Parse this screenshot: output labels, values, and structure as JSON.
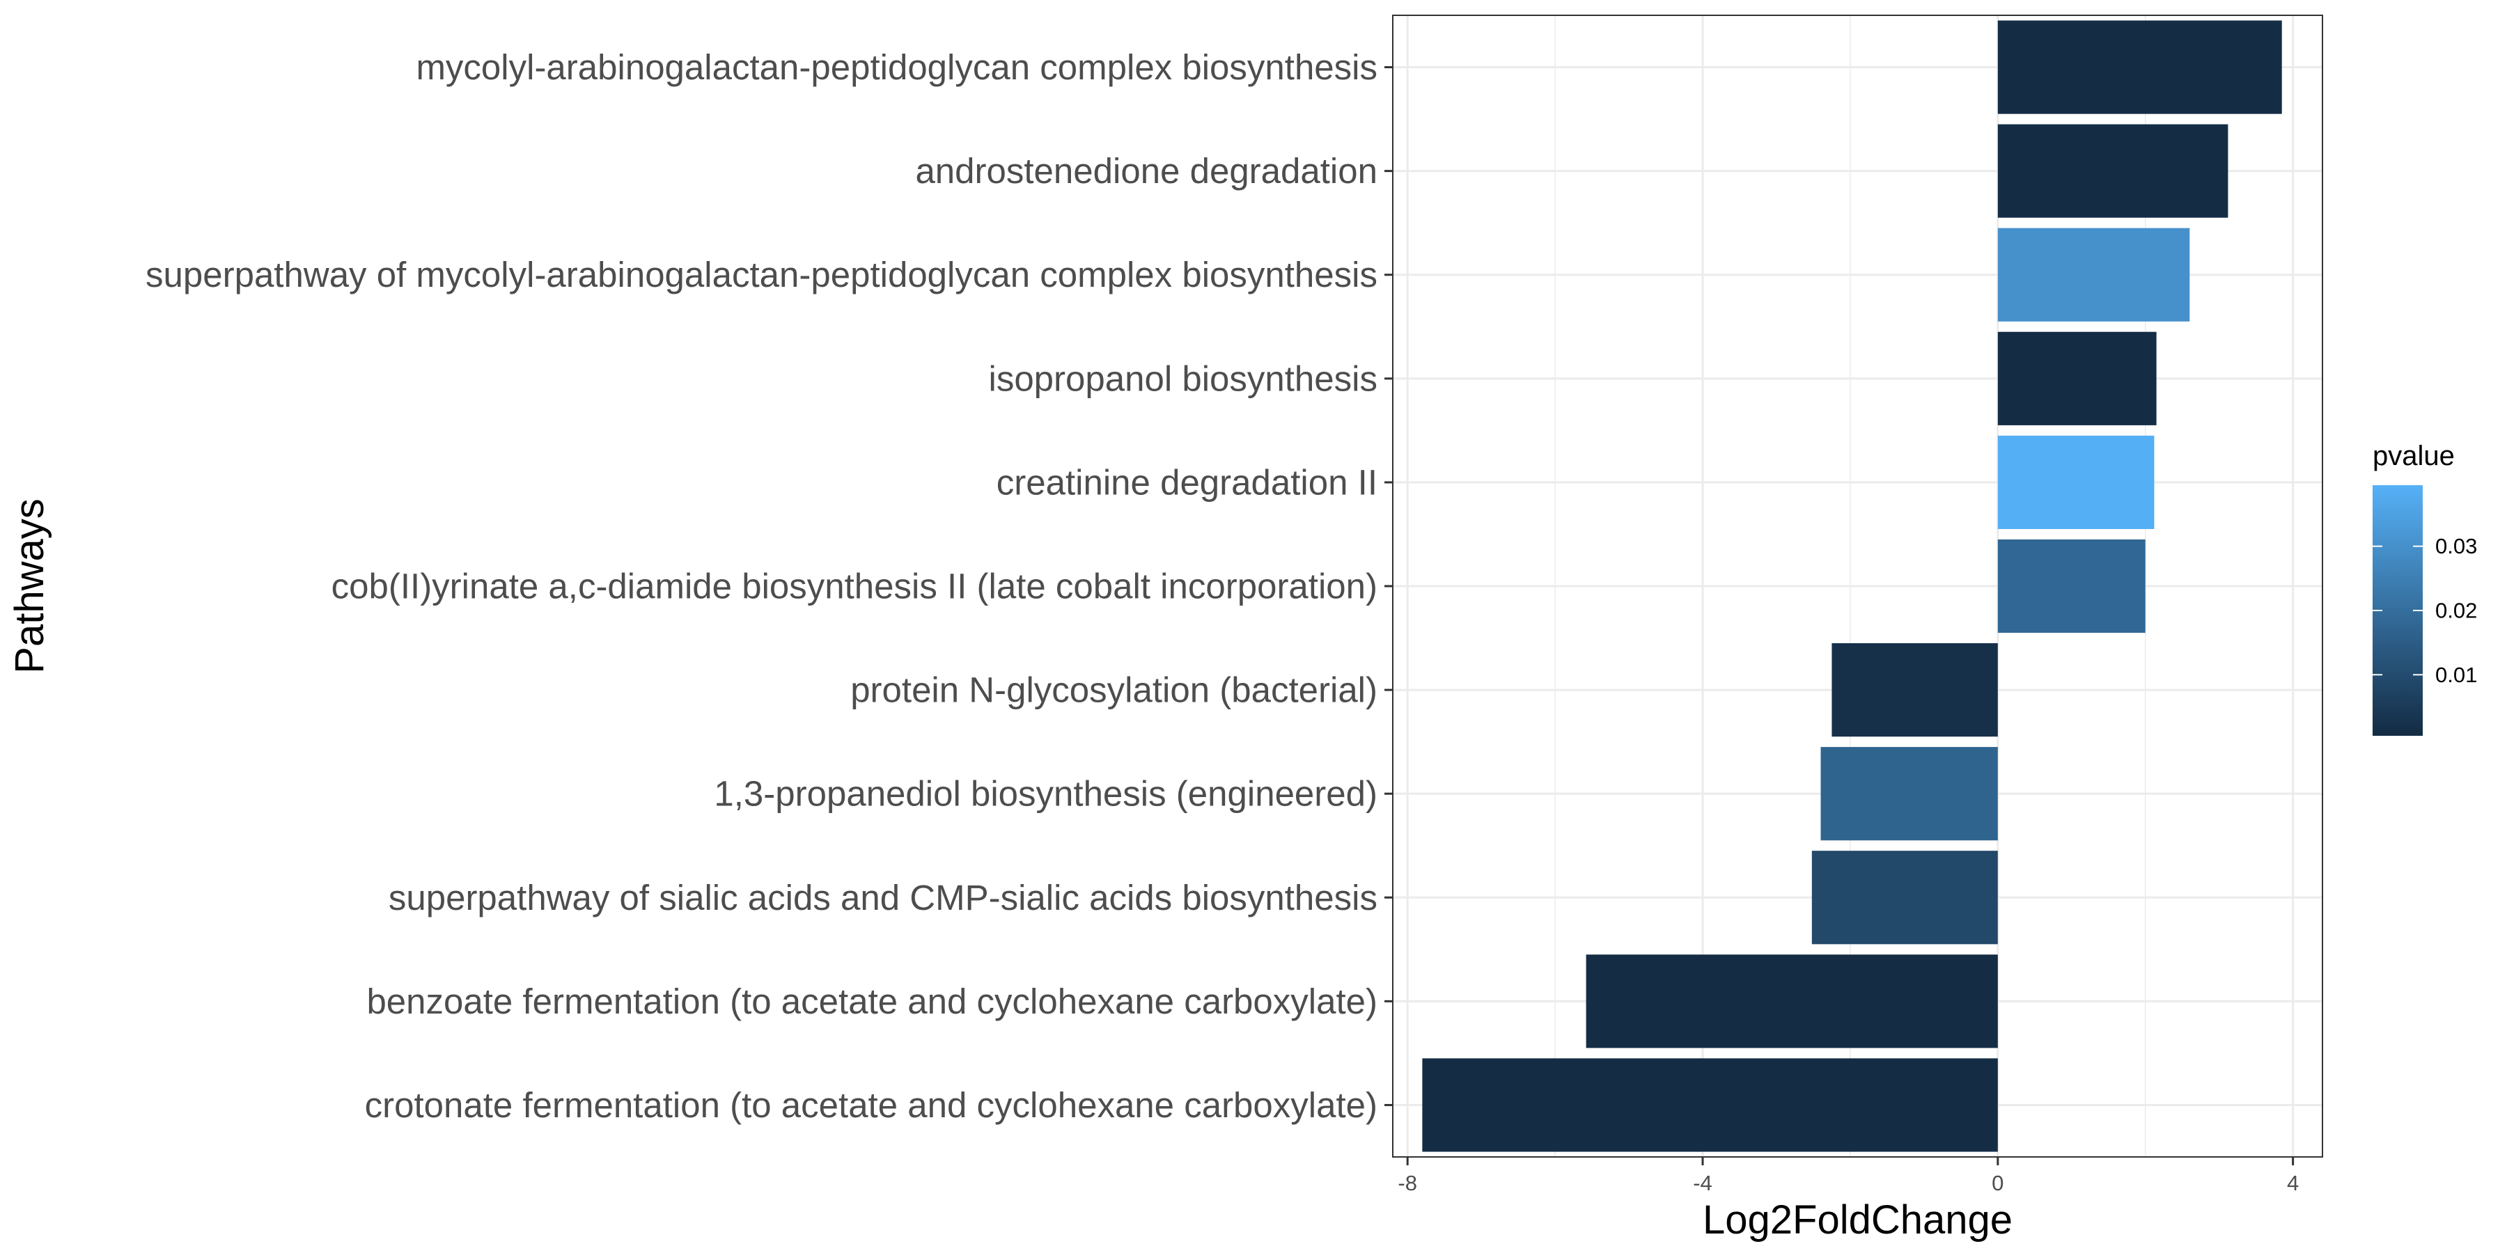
{
  "chart_data": {
    "type": "bar",
    "orientation": "horizontal",
    "xlabel": "Log2FoldChange",
    "ylabel": "Pathways",
    "xlim": [
      -8.2,
      4.4
    ],
    "x_ticks": [
      -8,
      -4,
      0,
      4
    ],
    "x_tick_labels": [
      "-8",
      "-4",
      "0",
      "4"
    ],
    "grid": true,
    "categories": [
      "mycolyl-arabinogalactan-peptidoglycan complex biosynthesis",
      "androstenedione degradation",
      "superpathway of mycolyl-arabinogalactan-peptidoglycan complex biosynthesis",
      "isopropanol biosynthesis",
      "creatinine degradation II",
      "cob(II)yrinate a,c-diamide biosynthesis II (late cobalt incorporation)",
      "protein N-glycosylation (bacterial)",
      "1,3-propanediol biosynthesis (engineered)",
      "superpathway of sialic acids and CMP-sialic acids biosynthesis",
      "benzoate fermentation (to acetate and cyclohexane carboxylate)",
      "crotonate fermentation (to acetate and cyclohexane carboxylate)"
    ],
    "values": [
      3.85,
      3.12,
      2.6,
      2.15,
      2.12,
      2.0,
      -2.25,
      -2.4,
      -2.52,
      -5.58,
      -7.8
    ],
    "pvalue": [
      0.001,
      0.001,
      0.03,
      0.001,
      0.039,
      0.018,
      0.002,
      0.017,
      0.009,
      0.001,
      0.001
    ],
    "color_scale": {
      "title": "pvalue",
      "min": 0.0005,
      "max": 0.0395,
      "low_color": "#132b43",
      "high_color": "#56b1f7",
      "ticks": [
        0.01,
        0.02,
        0.03
      ],
      "tick_labels": [
        "0.01",
        "0.02",
        "0.03"
      ]
    },
    "legend_position": "right"
  }
}
